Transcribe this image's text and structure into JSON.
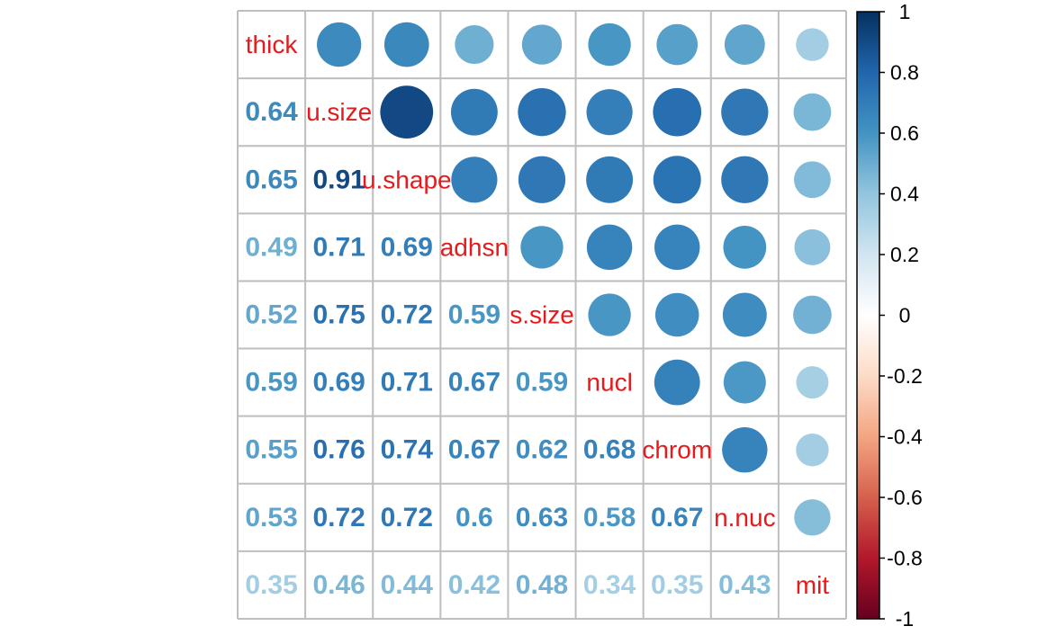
{
  "chart_data": {
    "type": "heatmap",
    "title": "",
    "layout": "mixed",
    "lower": "number",
    "upper": "circle",
    "variables": [
      "thick",
      "u.size",
      "u.shape",
      "adhsn",
      "s.size",
      "nucl",
      "chrom",
      "n.nuc",
      "mit"
    ],
    "matrix": [
      [
        1,
        0.64,
        0.65,
        0.49,
        0.52,
        0.59,
        0.55,
        0.53,
        0.35
      ],
      [
        0.64,
        1,
        0.91,
        0.71,
        0.75,
        0.69,
        0.76,
        0.72,
        0.46
      ],
      [
        0.65,
        0.91,
        1,
        0.69,
        0.72,
        0.71,
        0.74,
        0.72,
        0.44
      ],
      [
        0.49,
        0.71,
        0.69,
        1,
        0.59,
        0.67,
        0.67,
        0.6,
        0.42
      ],
      [
        0.52,
        0.75,
        0.72,
        0.59,
        1,
        0.59,
        0.62,
        0.63,
        0.48
      ],
      [
        0.59,
        0.69,
        0.71,
        0.67,
        0.59,
        1,
        0.68,
        0.58,
        0.34
      ],
      [
        0.55,
        0.76,
        0.74,
        0.67,
        0.62,
        0.68,
        1,
        0.67,
        0.35
      ],
      [
        0.53,
        0.72,
        0.72,
        0.6,
        0.63,
        0.58,
        0.67,
        1,
        0.43
      ],
      [
        0.35,
        0.46,
        0.44,
        0.42,
        0.48,
        0.34,
        0.35,
        0.43,
        1
      ]
    ],
    "number_labels": [
      [
        "",
        "",
        "",
        "",
        "",
        "",
        "",
        "",
        ""
      ],
      [
        "0.64",
        "",
        "",
        "",
        "",
        "",
        "",
        "",
        ""
      ],
      [
        "0.65",
        "0.91",
        "",
        "",
        "",
        "",
        "",
        "",
        ""
      ],
      [
        "0.49",
        "0.71",
        "0.69",
        "",
        "",
        "",
        "",
        "",
        ""
      ],
      [
        "0.52",
        "0.75",
        "0.72",
        "0.59",
        "",
        "",
        "",
        "",
        ""
      ],
      [
        "0.59",
        "0.69",
        "0.71",
        "0.67",
        "0.59",
        "",
        "",
        "",
        ""
      ],
      [
        "0.55",
        "0.76",
        "0.74",
        "0.67",
        "0.62",
        "0.68",
        "",
        "",
        ""
      ],
      [
        "0.53",
        "0.72",
        "0.72",
        "0.6",
        "0.63",
        "0.58",
        "0.67",
        "",
        ""
      ],
      [
        "0.35",
        "0.46",
        "0.44",
        "0.42",
        "0.48",
        "0.34",
        "0.35",
        "0.43",
        ""
      ]
    ],
    "colorbar": {
      "range": [
        -1,
        1
      ],
      "ticks": [
        "1",
        "0.8",
        "0.6",
        "0.4",
        "0.2",
        "0",
        "-0.2",
        "-0.4",
        "-0.6",
        "-0.8",
        "-1"
      ],
      "palette": [
        "#67001F",
        "#B2182B",
        "#D6604D",
        "#F4A582",
        "#FDDBC7",
        "#FFFFFF",
        "#D1E5F0",
        "#92C5DE",
        "#4393C3",
        "#2166AC",
        "#053061"
      ]
    },
    "colors": {
      "diag_label": "#E41A1C",
      "grid": "#BEBEBE",
      "colorbar_border": "#000000",
      "text": "#000000"
    }
  }
}
